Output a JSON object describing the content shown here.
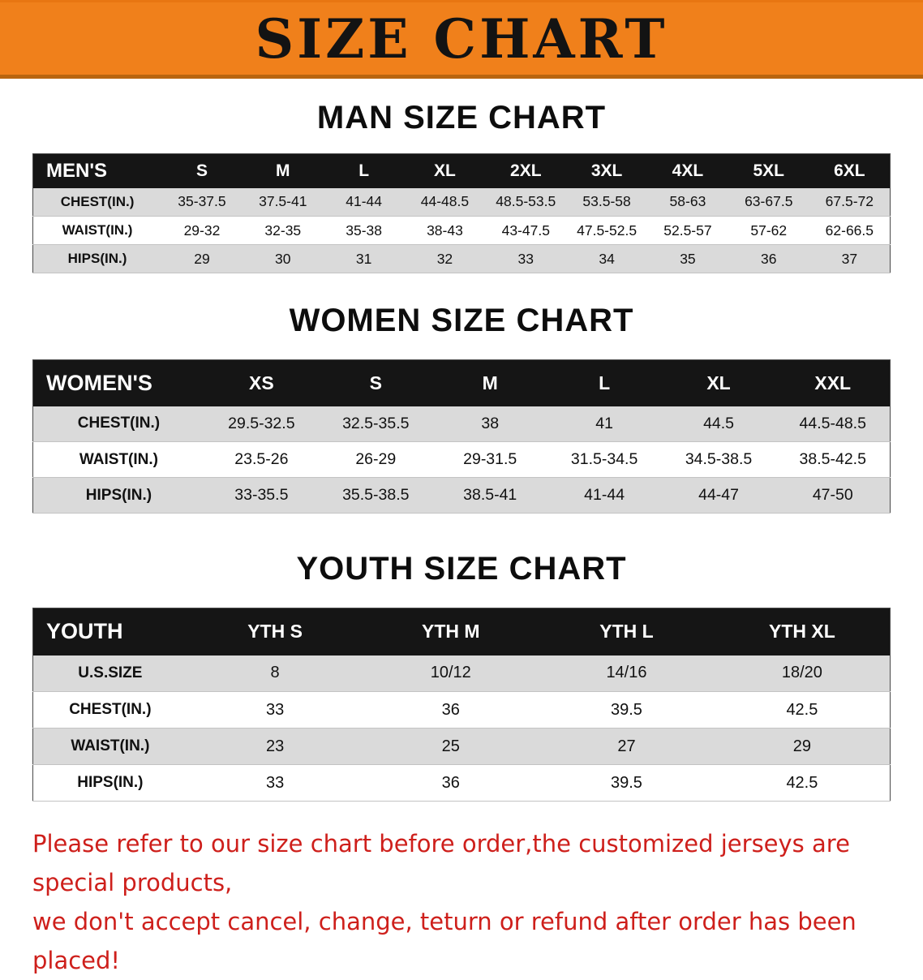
{
  "banner": {
    "title": "SIZE CHART"
  },
  "colors": {
    "banner_orange": "#F0801B",
    "table_header_black": "#151515",
    "row_stripe_gray": "#dadada",
    "disclaimer_red": "#CE1F1B"
  },
  "men": {
    "heading": "MAN SIZE CHART",
    "corner": "MEN'S",
    "sizes": [
      "S",
      "M",
      "L",
      "XL",
      "2XL",
      "3XL",
      "4XL",
      "5XL",
      "6XL"
    ],
    "rows": [
      {
        "label": "CHEST(IN.)",
        "values": [
          "35-37.5",
          "37.5-41",
          "41-44",
          "44-48.5",
          "48.5-53.5",
          "53.5-58",
          "58-63",
          "63-67.5",
          "67.5-72"
        ]
      },
      {
        "label": "WAIST(IN.)",
        "values": [
          "29-32",
          "32-35",
          "35-38",
          "38-43",
          "43-47.5",
          "47.5-52.5",
          "52.5-57",
          "57-62",
          "62-66.5"
        ]
      },
      {
        "label": "HIPS(IN.)",
        "values": [
          "29",
          "30",
          "31",
          "32",
          "33",
          "34",
          "35",
          "36",
          "37"
        ]
      }
    ]
  },
  "women": {
    "heading": "WOMEN SIZE CHART",
    "corner": "WOMEN'S",
    "sizes": [
      "XS",
      "S",
      "M",
      "L",
      "XL",
      "XXL"
    ],
    "rows": [
      {
        "label": "CHEST(IN.)",
        "values": [
          "29.5-32.5",
          "32.5-35.5",
          "38",
          "41",
          "44.5",
          "44.5-48.5"
        ]
      },
      {
        "label": "WAIST(IN.)",
        "values": [
          "23.5-26",
          "26-29",
          "29-31.5",
          "31.5-34.5",
          "34.5-38.5",
          "38.5-42.5"
        ]
      },
      {
        "label": "HIPS(IN.)",
        "values": [
          "33-35.5",
          "35.5-38.5",
          "38.5-41",
          "41-44",
          "44-47",
          "47-50"
        ]
      }
    ]
  },
  "youth": {
    "heading": "YOUTH SIZE CHART",
    "corner": "YOUTH",
    "sizes": [
      "YTH S",
      "YTH M",
      "YTH L",
      "YTH XL"
    ],
    "rows": [
      {
        "label": "U.S.SIZE",
        "values": [
          "8",
          "10/12",
          "14/16",
          "18/20"
        ]
      },
      {
        "label": "CHEST(IN.)",
        "values": [
          "33",
          "36",
          "39.5",
          "42.5"
        ]
      },
      {
        "label": "WAIST(IN.)",
        "values": [
          "23",
          "25",
          "27",
          "29"
        ]
      },
      {
        "label": "HIPS(IN.)",
        "values": [
          "33",
          "36",
          "39.5",
          "42.5"
        ]
      }
    ]
  },
  "disclaimer": {
    "line1": "Please refer to our size chart before order,the customized jerseys are special products,",
    "line2": "we don't accept cancel, change, teturn or refund after order has been placed!"
  }
}
